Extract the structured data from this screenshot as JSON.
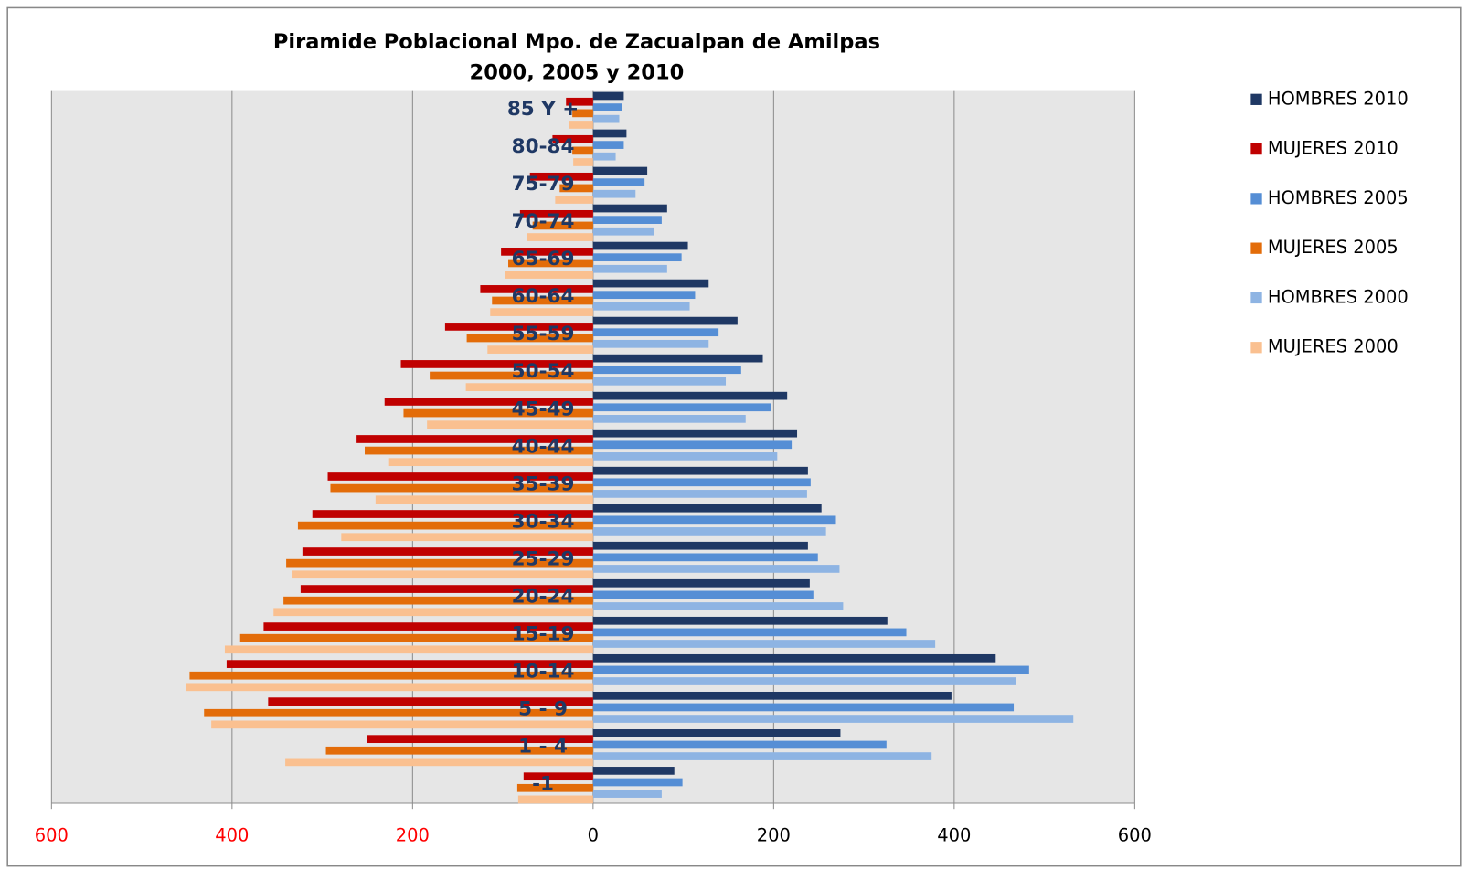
{
  "chart_data": {
    "type": "bar",
    "orientation": "horizontal",
    "title": "Piramide Poblacional  Mpo. de Zacualpan de Amilpas",
    "subtitle": "2000, 2005 y 2010",
    "categories": [
      "-1",
      "1 - 4",
      "5 - 9",
      "10-14",
      "15-19",
      "20-24",
      "25-29",
      "30-34",
      "35-39",
      "40-44",
      "45-49",
      "50-54",
      "55-59",
      "60-64",
      "65-69",
      "70-74",
      "75-79",
      "80-84",
      "85 Y +"
    ],
    "series": [
      {
        "name": "HOMBRES 2010",
        "color": "#1f3864",
        "values": [
          90,
          274,
          397,
          446,
          326,
          240,
          238,
          253,
          238,
          226,
          215,
          188,
          160,
          128,
          105,
          82,
          60,
          37,
          34
        ]
      },
      {
        "name": "MUJERES 2010",
        "color": "#c00000",
        "values": [
          -77,
          -250,
          -360,
          -406,
          -365,
          -324,
          -322,
          -311,
          -294,
          -262,
          -231,
          -213,
          -164,
          -125,
          -102,
          -81,
          -70,
          -45,
          -30
        ]
      },
      {
        "name": "HOMBRES 2005",
        "color": "#558ed5",
        "values": [
          99,
          325,
          466,
          483,
          347,
          244,
          249,
          269,
          241,
          220,
          197,
          164,
          139,
          113,
          98,
          76,
          57,
          34,
          32
        ]
      },
      {
        "name": "MUJERES 2005",
        "color": "#e36c09",
        "values": [
          -84,
          -296,
          -431,
          -447,
          -391,
          -343,
          -340,
          -327,
          -291,
          -253,
          -210,
          -181,
          -140,
          -112,
          -94,
          -67,
          -37,
          -23,
          -23
        ]
      },
      {
        "name": "HOMBRES 2000",
        "color": "#8eb4e3",
        "values": [
          76,
          375,
          532,
          468,
          379,
          277,
          273,
          258,
          237,
          204,
          169,
          147,
          128,
          107,
          82,
          67,
          47,
          25,
          29
        ]
      },
      {
        "name": "MUJERES 2000",
        "color": "#fac090",
        "values": [
          -83,
          -341,
          -423,
          -451,
          -408,
          -354,
          -334,
          -279,
          -241,
          -226,
          -184,
          -141,
          -117,
          -114,
          -98,
          -73,
          -42,
          -22,
          -27
        ]
      }
    ],
    "xlim": [
      -600,
      600
    ],
    "xticks": [
      {
        "value": -600,
        "label": "600"
      },
      {
        "value": -400,
        "label": "400"
      },
      {
        "value": -200,
        "label": "200"
      },
      0,
      200,
      400,
      600
    ],
    "negative_tick_color": "#ff0000",
    "grid": true,
    "legend": "right"
  }
}
